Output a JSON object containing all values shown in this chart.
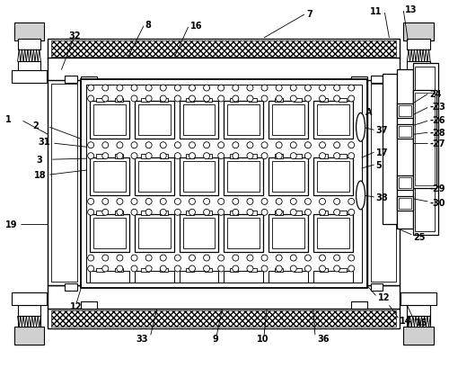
{
  "fig_width": 5.0,
  "fig_height": 4.1,
  "dpi": 100,
  "bg": "#ffffff",
  "lc": "#000000",
  "lw": 0.8
}
